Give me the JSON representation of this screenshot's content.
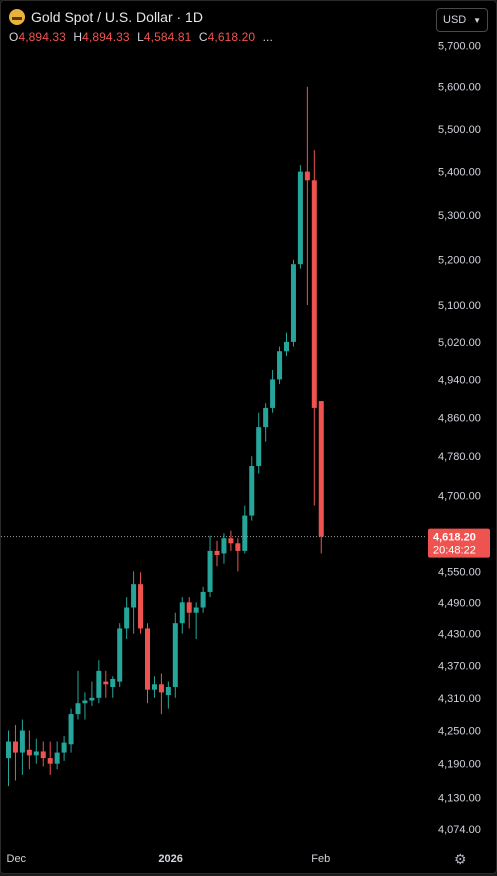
{
  "header": {
    "symbol_title": "Gold Spot / U.S. Dollar · 1D",
    "logo_icon": "gold-bars-icon",
    "ohlc": {
      "o_label": "O",
      "o_value": "4,894.33",
      "h_label": "H",
      "h_value": "4,894.33",
      "l_label": "L",
      "l_value": "4,584.81",
      "c_label": "C",
      "c_value": "4,618.20",
      "more": "..."
    }
  },
  "currency": {
    "label": "USD",
    "icon": "chevron-down-icon"
  },
  "price_axis": {
    "ticks": [
      5700,
      5600,
      5500,
      5400,
      5300,
      5200,
      5100,
      5020,
      4940,
      4860,
      4780,
      4700,
      4620,
      4550,
      4490,
      4430,
      4370,
      4310,
      4250,
      4190,
      4130,
      4074
    ],
    "tick_labels": [
      "5,700.00",
      "5,600.00",
      "5,500.00",
      "5,400.00",
      "5,300.00",
      "5,200.00",
      "5,100.00",
      "5,020.00",
      "4,940.00",
      "4,860.00",
      "4,780.00",
      "4,700.00",
      "",
      "4,550.00",
      "4,490.00",
      "4,430.00",
      "4,370.00",
      "4,310.00",
      "4,250.00",
      "4,190.00",
      "4,130.00",
      "4,074.00"
    ]
  },
  "time_axis": {
    "labels": [
      {
        "text": "Dec",
        "bar": 0
      },
      {
        "text": "2026",
        "bar": 23
      },
      {
        "text": "Feb",
        "bar": 45
      }
    ]
  },
  "last_price": {
    "value": 4618.2,
    "label": "4,618.20",
    "countdown": "20:48:22",
    "color": "#ef5350"
  },
  "settings_icon": "gear-icon",
  "colors": {
    "up": "#26a69a",
    "down": "#ef5350",
    "background": "#000000",
    "text": "#d1d4dc"
  },
  "chart_data": {
    "type": "candlestick",
    "title": "Gold Spot / U.S. Dollar · 1D",
    "ylim": [
      4050,
      5760
    ],
    "scale": "log",
    "candles": [
      {
        "o": 4200,
        "h": 4250,
        "l": 4150,
        "c": 4230
      },
      {
        "o": 4230,
        "h": 4260,
        "l": 4160,
        "c": 4210
      },
      {
        "o": 4210,
        "h": 4270,
        "l": 4170,
        "c": 4250
      },
      {
        "o": 4215,
        "h": 4250,
        "l": 4180,
        "c": 4205
      },
      {
        "o": 4205,
        "h": 4235,
        "l": 4190,
        "c": 4212
      },
      {
        "o": 4212,
        "h": 4230,
        "l": 4185,
        "c": 4200
      },
      {
        "o": 4200,
        "h": 4230,
        "l": 4170,
        "c": 4190
      },
      {
        "o": 4190,
        "h": 4230,
        "l": 4180,
        "c": 4210
      },
      {
        "o": 4210,
        "h": 4240,
        "l": 4195,
        "c": 4228
      },
      {
        "o": 4225,
        "h": 4290,
        "l": 4210,
        "c": 4280
      },
      {
        "o": 4280,
        "h": 4360,
        "l": 4270,
        "c": 4300
      },
      {
        "o": 4300,
        "h": 4320,
        "l": 4270,
        "c": 4305
      },
      {
        "o": 4305,
        "h": 4340,
        "l": 4295,
        "c": 4310
      },
      {
        "o": 4310,
        "h": 4380,
        "l": 4300,
        "c": 4360
      },
      {
        "o": 4340,
        "h": 4360,
        "l": 4310,
        "c": 4335
      },
      {
        "o": 4330,
        "h": 4350,
        "l": 4310,
        "c": 4345
      },
      {
        "o": 4340,
        "h": 4450,
        "l": 4330,
        "c": 4440
      },
      {
        "o": 4440,
        "h": 4500,
        "l": 4420,
        "c": 4480
      },
      {
        "o": 4480,
        "h": 4550,
        "l": 4430,
        "c": 4525
      },
      {
        "o": 4525,
        "h": 4548,
        "l": 4430,
        "c": 4440
      },
      {
        "o": 4440,
        "h": 4450,
        "l": 4300,
        "c": 4325
      },
      {
        "o": 4325,
        "h": 4350,
        "l": 4310,
        "c": 4335
      },
      {
        "o": 4335,
        "h": 4355,
        "l": 4280,
        "c": 4320
      },
      {
        "o": 4315,
        "h": 4340,
        "l": 4290,
        "c": 4330
      },
      {
        "o": 4330,
        "h": 4470,
        "l": 4310,
        "c": 4450
      },
      {
        "o": 4450,
        "h": 4500,
        "l": 4430,
        "c": 4490
      },
      {
        "o": 4490,
        "h": 4500,
        "l": 4440,
        "c": 4470
      },
      {
        "o": 4470,
        "h": 4490,
        "l": 4420,
        "c": 4480
      },
      {
        "o": 4480,
        "h": 4520,
        "l": 4470,
        "c": 4510
      },
      {
        "o": 4510,
        "h": 4620,
        "l": 4500,
        "c": 4590
      },
      {
        "o": 4590,
        "h": 4610,
        "l": 4560,
        "c": 4582
      },
      {
        "o": 4585,
        "h": 4625,
        "l": 4565,
        "c": 4615
      },
      {
        "o": 4615,
        "h": 4630,
        "l": 4590,
        "c": 4605
      },
      {
        "o": 4605,
        "h": 4615,
        "l": 4550,
        "c": 4590
      },
      {
        "o": 4590,
        "h": 4680,
        "l": 4585,
        "c": 4660
      },
      {
        "o": 4660,
        "h": 4780,
        "l": 4650,
        "c": 4760
      },
      {
        "o": 4760,
        "h": 4870,
        "l": 4745,
        "c": 4840
      },
      {
        "o": 4840,
        "h": 4890,
        "l": 4810,
        "c": 4880
      },
      {
        "o": 4880,
        "h": 4960,
        "l": 4870,
        "c": 4940
      },
      {
        "o": 4940,
        "h": 5010,
        "l": 4930,
        "c": 5000
      },
      {
        "o": 5000,
        "h": 5040,
        "l": 4990,
        "c": 5020
      },
      {
        "o": 5020,
        "h": 5200,
        "l": 5010,
        "c": 5190
      },
      {
        "o": 5190,
        "h": 5415,
        "l": 5180,
        "c": 5400
      },
      {
        "o": 5400,
        "h": 5600,
        "l": 5100,
        "c": 5380
      },
      {
        "o": 5380,
        "h": 5450,
        "l": 4680,
        "c": 4880
      },
      {
        "o": 4894.33,
        "h": 4894.33,
        "l": 4584.81,
        "c": 4618.2
      }
    ]
  }
}
